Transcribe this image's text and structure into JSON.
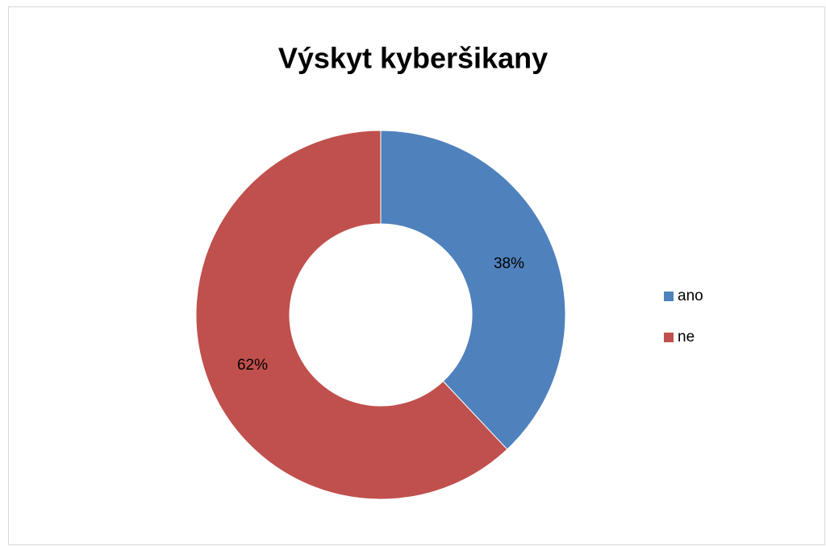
{
  "chart_data": {
    "type": "donut",
    "title": "Výskyt kyberšikany",
    "categories": [
      "ano",
      "ne"
    ],
    "values": [
      38,
      62
    ],
    "value_labels": [
      "38%",
      "62%"
    ],
    "colors": [
      "#4f81bd",
      "#c0504d"
    ],
    "legend": "right"
  }
}
